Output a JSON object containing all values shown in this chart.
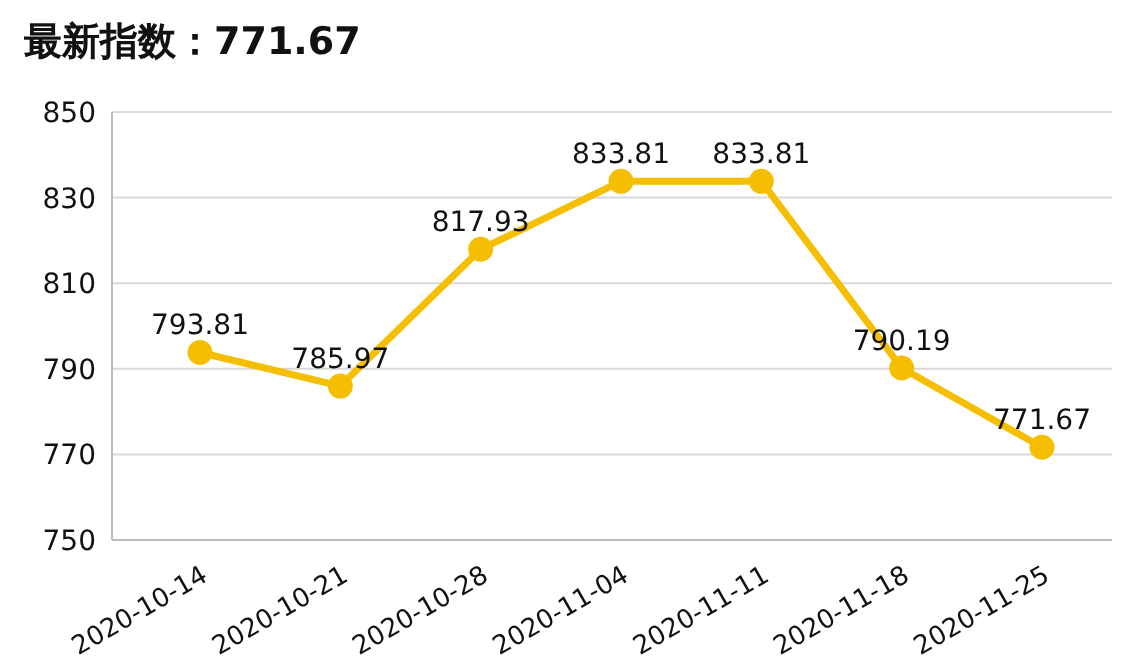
{
  "chart_data": {
    "type": "line",
    "title": "最新指数：771.67",
    "categories": [
      "2020-10-14",
      "2020-10-21",
      "2020-10-28",
      "2020-11-04",
      "2020-11-11",
      "2020-11-18",
      "2020-11-25"
    ],
    "series": [
      {
        "color": "#f5be00",
        "values": [
          793.81,
          785.97,
          817.93,
          833.81,
          833.81,
          790.19,
          771.67
        ]
      }
    ],
    "ylim": [
      750,
      850
    ],
    "yticks": [
      750,
      770,
      790,
      810,
      830,
      850
    ],
    "grid": "y",
    "marker": "circle",
    "line_style": "solid",
    "data_labels": true,
    "legend": false
  }
}
